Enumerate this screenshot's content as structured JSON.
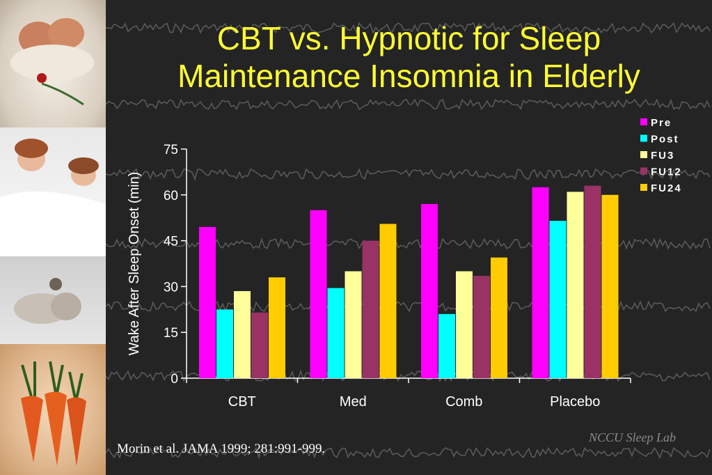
{
  "slide": {
    "title_line1": "CBT vs. Hypnotic for Sleep",
    "title_line2": "Maintenance Insomnia in Elderly",
    "citation": "Morin et al. JAMA 1999; 281:991-999.",
    "watermark": "NCCU Sleep Lab",
    "title_color": "#ffff33",
    "background_color": "#242424",
    "photos": [
      "babies-sleeping-in-blanket",
      "children-in-bed",
      "baby-sleeping-with-teddy",
      "carrots-in-fabric"
    ]
  },
  "chart_data": {
    "type": "bar",
    "title": "",
    "xlabel": "",
    "ylabel": "Wake After Sleep Onset (min)",
    "ylim": [
      0,
      75
    ],
    "yticks": [
      0,
      15,
      30,
      45,
      60,
      75
    ],
    "grid": false,
    "legend_position": "top-right",
    "categories": [
      "CBT",
      "Med",
      "Comb",
      "Placebo"
    ],
    "series": [
      {
        "name": "Pre",
        "color": "#ff00ff",
        "values": [
          49.5,
          55.0,
          57.0,
          62.5
        ]
      },
      {
        "name": "Post",
        "color": "#00ffff",
        "values": [
          22.5,
          29.5,
          21.0,
          51.5
        ]
      },
      {
        "name": "FU3",
        "color": "#ffff99",
        "values": [
          28.5,
          35.0,
          35.0,
          61.0
        ]
      },
      {
        "name": "FU12",
        "color": "#993366",
        "values": [
          21.5,
          45.0,
          33.5,
          63.0
        ]
      },
      {
        "name": "FU24",
        "color": "#ffcc00",
        "values": [
          33.0,
          50.5,
          39.5,
          60.0
        ]
      }
    ]
  }
}
